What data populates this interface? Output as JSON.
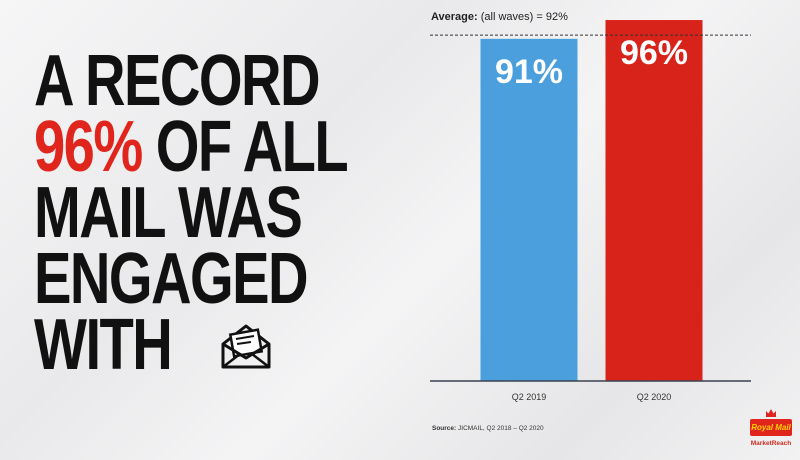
{
  "headline": {
    "line1": "A RECORD",
    "line2_accent": "96%",
    "line2_rest": " OF ALL",
    "line3": "MAIL WAS",
    "line4": "ENGAGED",
    "line5": "WITH"
  },
  "icons": {
    "envelope": "open-envelope-icon"
  },
  "colors": {
    "accent_red": "#e0261c",
    "bar_blue": "#4a9fdc",
    "bar_red": "#d8231b"
  },
  "chart_data": {
    "type": "bar",
    "categories": [
      "Q2 2019",
      "Q2 2020"
    ],
    "values": [
      91,
      96
    ],
    "value_labels": [
      "91%",
      "96%"
    ],
    "ylim": [
      0,
      100
    ],
    "grid": false,
    "reference_line": {
      "value": 92,
      "label_bold": "Average:",
      "label_rest": " (all waves) = 92%"
    }
  },
  "source": {
    "label": "Source:",
    "text": " JICMAIL, Q2 2018 – Q2 2020"
  },
  "logo": {
    "name": "Royal Mail",
    "subtitle": "MarketReach"
  }
}
